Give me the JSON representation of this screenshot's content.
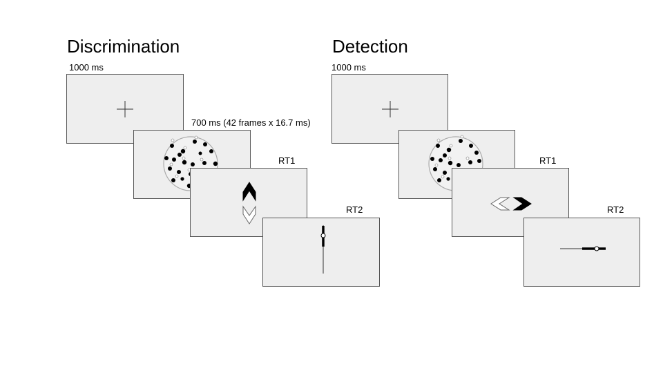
{
  "panels": {
    "discrimination": {
      "title": "Discrimination",
      "fixation_label": "1000 ms",
      "stimulus_label": "700 ms (42 frames x 16.7 ms)",
      "rt1_label": "RT1",
      "rt2_label": "RT2"
    },
    "detection": {
      "title": "Detection",
      "fixation_label": "1000 ms",
      "rt1_label": "RT1",
      "rt2_label": "RT2"
    }
  },
  "colors": {
    "screen_fill": "#eeeeee",
    "screen_border": "#555555",
    "ink": "#000000"
  }
}
